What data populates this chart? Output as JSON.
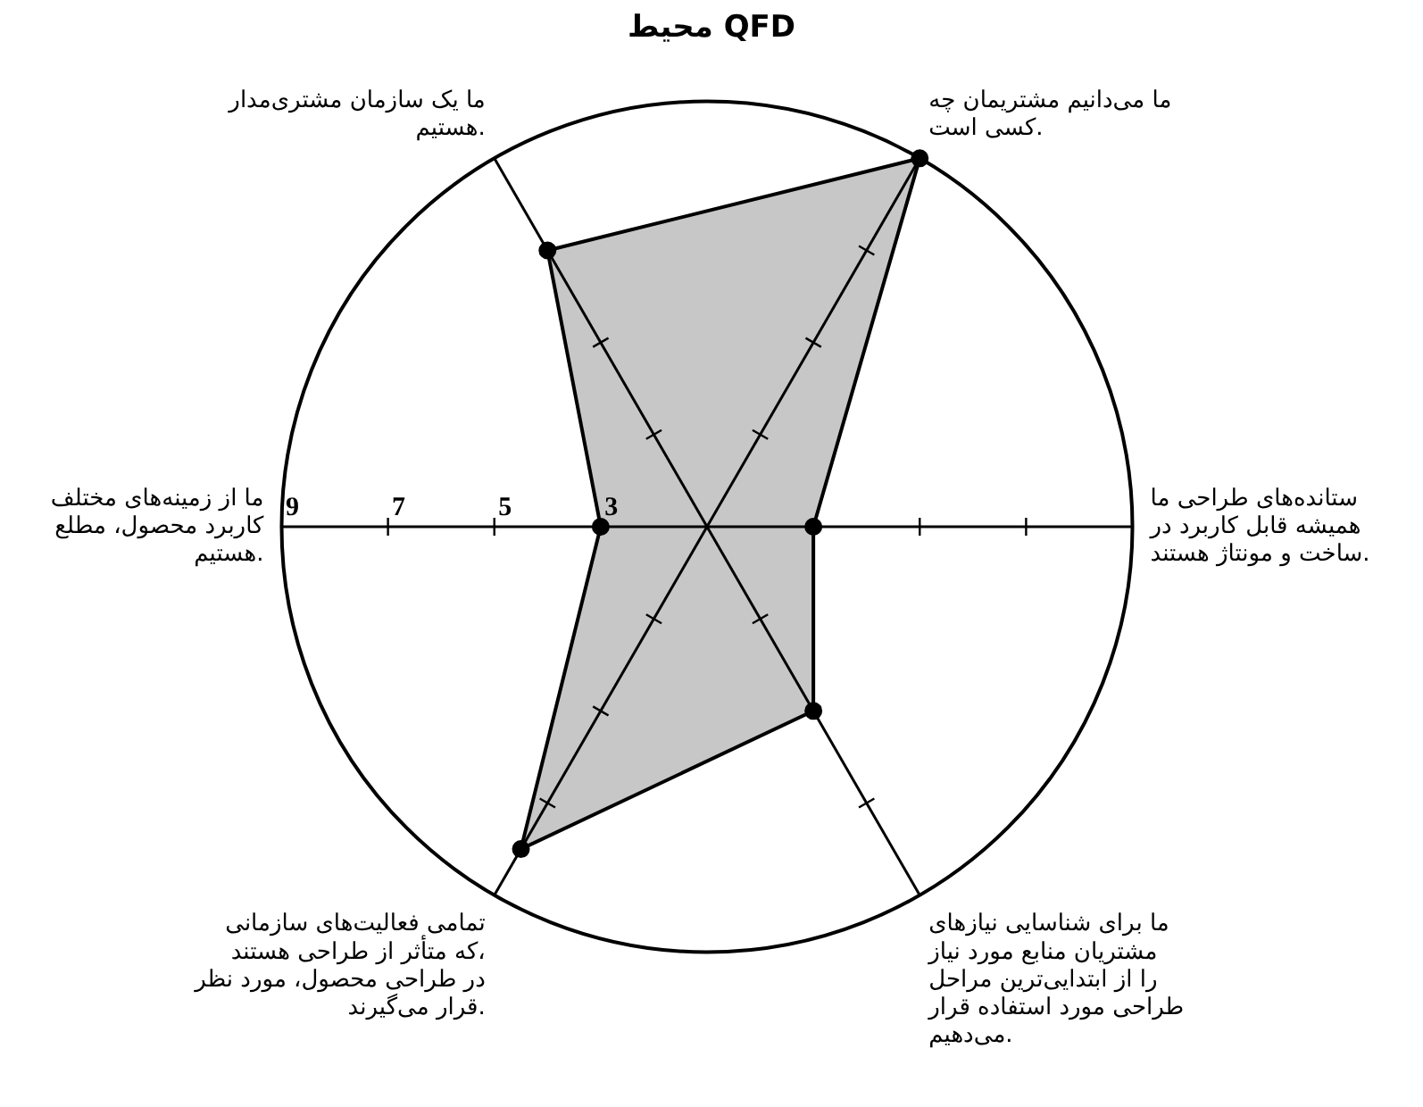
{
  "chart_data": {
    "type": "radar",
    "title": "محیط QFD",
    "categories": [
      "ما می‌دانیم مشتریمان چه کسی است.",
      "ستانده‌های طراحی ما همیشه قابل کاربرد در ساخت و مونتاژ هستند.",
      "ما برای شناسایی نیازهای مشتریان منابع مورد نیاز را از ابتدایی‌ترین مراحل طراحی مورد استفاده قرار می‌دهیم.",
      "تمامی فعالیت‌های سازمانی که متأثر از طراحی هستند، در طراحی محصول، مورد نظر قرار می‌گیرند.",
      "ما از زمینه‌های مختلف کاربرد محصول، مطلع هستیم.",
      "ما یک سازمان مشتری‌مدار هستیم."
    ],
    "series": [
      {
        "color": "#000000",
        "values": [
          9,
          3,
          5,
          8,
          3,
          7
        ]
      }
    ],
    "ylim": [
      1,
      9
    ],
    "yticks": [
      3,
      5,
      7,
      9
    ],
    "marker": "circle",
    "grid": true,
    "legend": false
  }
}
